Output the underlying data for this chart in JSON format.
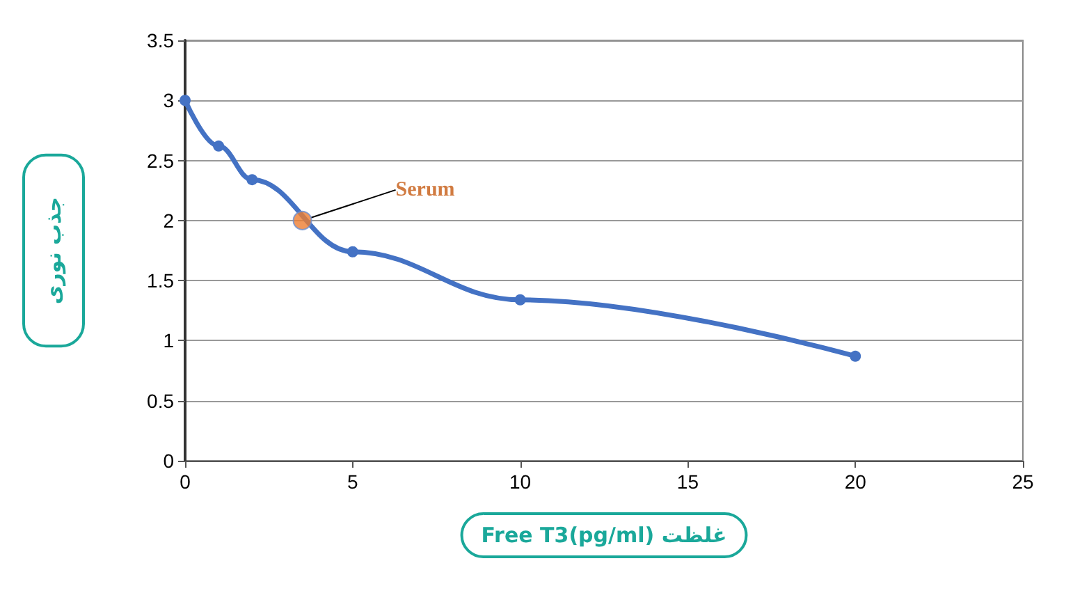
{
  "chart_data": {
    "type": "line",
    "xlabel": "Free T3(pg/ml) غلظت",
    "ylabel": "جذب نوری",
    "x": [
      0,
      1,
      2,
      5,
      10,
      20
    ],
    "series": [
      {
        "color": "#4472c4",
        "values": [
          3,
          2.62,
          2.34,
          1.74,
          1.34,
          0.87
        ]
      },
      {
        "type": "scatter",
        "color": "#ed7d31",
        "x": [
          3.5
        ],
        "values": [
          2
        ]
      }
    ],
    "annotations": [
      {
        "text": "Serum",
        "x": 3.5,
        "y": 2
      }
    ],
    "xlim": [
      0,
      25
    ],
    "xticks": [
      0,
      5,
      10,
      15,
      20,
      25
    ],
    "ylim": [
      0,
      3.5
    ],
    "yticks": [
      0,
      0.5,
      1,
      1.5,
      2,
      2.5,
      3,
      3.5
    ],
    "grid": "y",
    "marker": "circle",
    "line_style": "solid"
  }
}
